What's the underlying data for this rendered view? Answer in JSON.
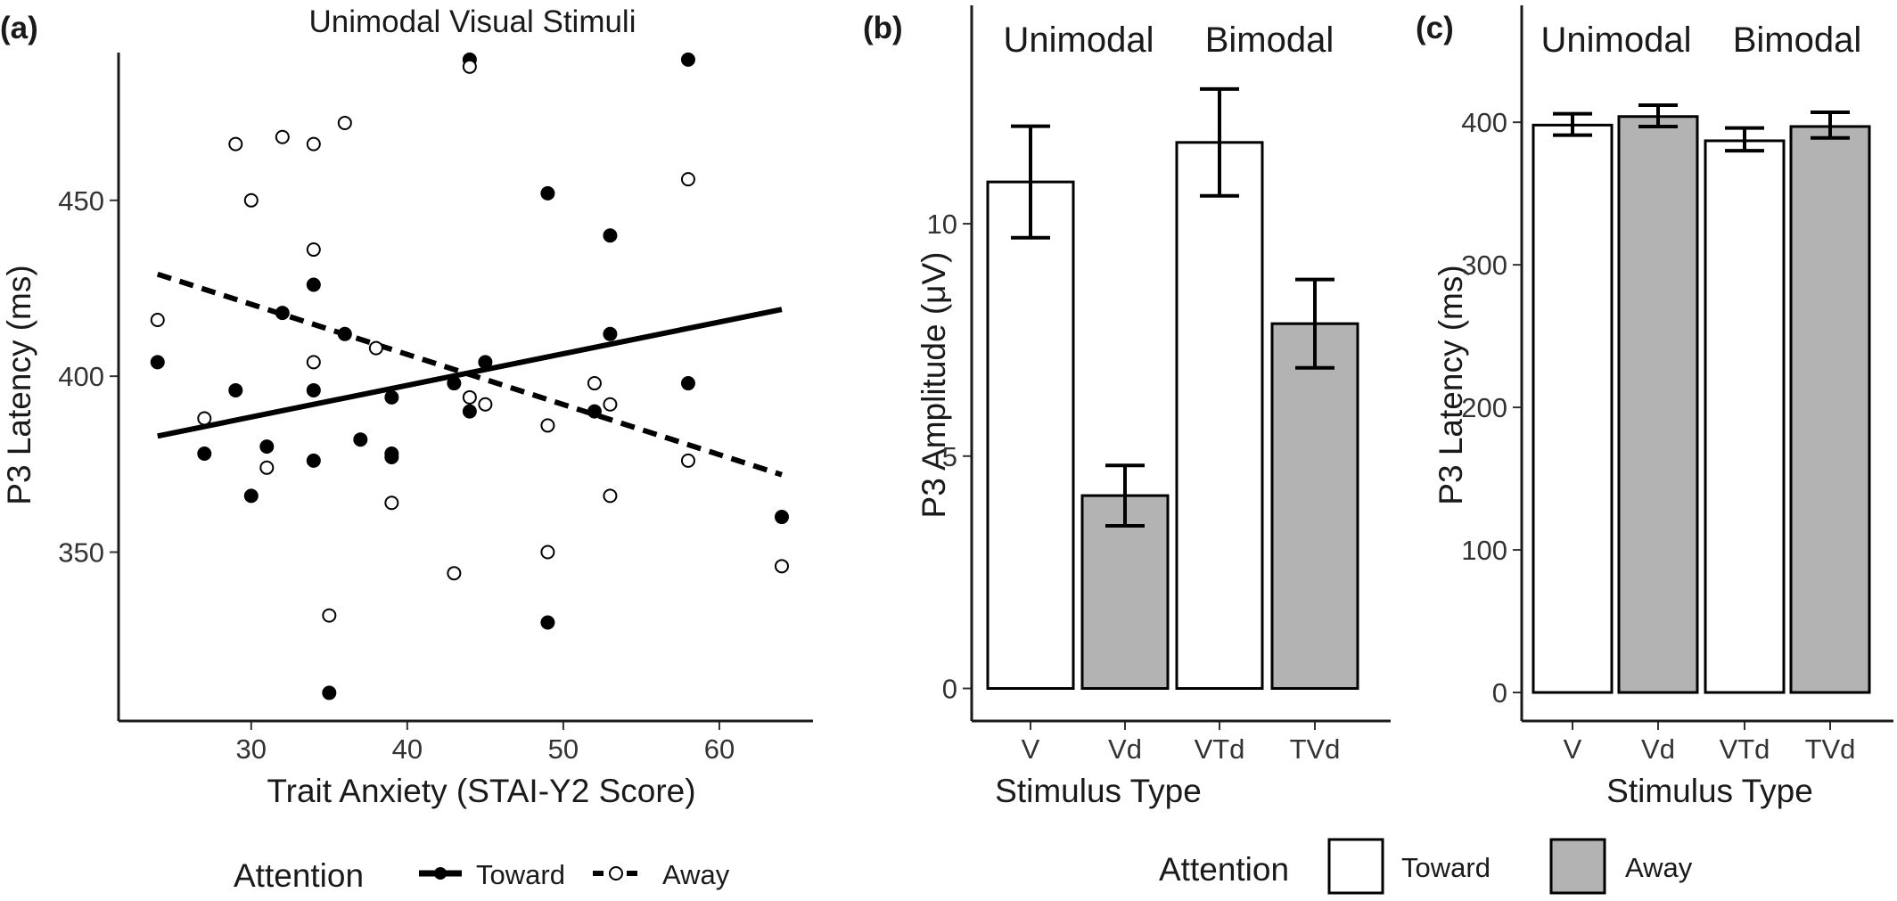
{
  "colors": {
    "toward_fill": "#ffffff",
    "away_fill": "#b3b3b3",
    "line": "#000000",
    "axis": "#1a1a1a"
  },
  "chart_data": [
    {
      "panel_label": "(a)",
      "type": "scatter",
      "title": "Unimodal Visual Stimuli",
      "xlabel": "Trait Anxiety (STAI-Y2 Score)",
      "ylabel": "P3 Latency (ms)",
      "xlim": [
        21.5,
        66
      ],
      "ylim": [
        302,
        492
      ],
      "xticks": [
        30,
        40,
        50,
        60
      ],
      "yticks": [
        350,
        400,
        450
      ],
      "legend_title": "Attention",
      "legend_position": "bottom",
      "series": [
        {
          "name": "Toward",
          "marker": "filled-circle",
          "line_style": "solid",
          "fit": {
            "x": [
              24,
              64
            ],
            "y": [
              383,
              419
            ]
          },
          "points": [
            [
              24,
              404
            ],
            [
              27,
              378
            ],
            [
              29,
              396
            ],
            [
              30,
              366
            ],
            [
              31,
              380
            ],
            [
              32,
              418
            ],
            [
              34,
              426
            ],
            [
              34,
              396
            ],
            [
              34,
              376
            ],
            [
              36,
              412
            ],
            [
              37,
              382
            ],
            [
              39,
              394
            ],
            [
              39,
              378
            ],
            [
              39,
              377
            ],
            [
              35,
              310
            ],
            [
              43,
              398
            ],
            [
              44,
              490
            ],
            [
              44,
              390
            ],
            [
              45,
              404
            ],
            [
              49,
              452
            ],
            [
              49,
              330
            ],
            [
              52,
              390
            ],
            [
              53,
              440
            ],
            [
              53,
              412
            ],
            [
              58,
              490
            ],
            [
              58,
              398
            ],
            [
              64,
              360
            ]
          ]
        },
        {
          "name": "Away",
          "marker": "open-circle",
          "line_style": "dashed",
          "fit": {
            "x": [
              24,
              64
            ],
            "y": [
              429,
              372
            ]
          },
          "points": [
            [
              24,
              416
            ],
            [
              27,
              388
            ],
            [
              29,
              466
            ],
            [
              30,
              450
            ],
            [
              31,
              374
            ],
            [
              32,
              468
            ],
            [
              34,
              466
            ],
            [
              34,
              436
            ],
            [
              34,
              404
            ],
            [
              35,
              332
            ],
            [
              36,
              472
            ],
            [
              38,
              408
            ],
            [
              39,
              364
            ],
            [
              43,
              344
            ],
            [
              44,
              488
            ],
            [
              44,
              394
            ],
            [
              45,
              392
            ],
            [
              49,
              386
            ],
            [
              49,
              350
            ],
            [
              52,
              398
            ],
            [
              53,
              392
            ],
            [
              53,
              366
            ],
            [
              58,
              456
            ],
            [
              58,
              376
            ],
            [
              64,
              346
            ]
          ]
        }
      ]
    },
    {
      "panel_label": "(b)",
      "type": "bar",
      "xlabel": "Stimulus Type",
      "ylabel": "P3 Amplitude (μV)",
      "ylim": [
        -0.7,
        14.7
      ],
      "yticks": [
        0,
        5,
        10
      ],
      "categories": [
        "V",
        "Vd",
        "VTd",
        "TVd"
      ],
      "attention": [
        "Toward",
        "Away",
        "Toward",
        "Away"
      ],
      "values": [
        10.9,
        4.15,
        11.75,
        7.85
      ],
      "error_bars": [
        [
          9.7,
          12.1
        ],
        [
          3.5,
          4.8
        ],
        [
          10.6,
          12.9
        ],
        [
          6.9,
          8.8
        ]
      ],
      "group_labels": [
        "Unimodal",
        "Bimodal"
      ]
    },
    {
      "panel_label": "(c)",
      "type": "bar",
      "xlabel": "Stimulus Type",
      "ylabel": "P3 Latency (ms)",
      "ylim": [
        -20,
        482
      ],
      "yticks": [
        0,
        100,
        200,
        300,
        400
      ],
      "categories": [
        "V",
        "Vd",
        "VTd",
        "TVd"
      ],
      "attention": [
        "Toward",
        "Away",
        "Toward",
        "Away"
      ],
      "values": [
        398,
        404,
        387,
        397
      ],
      "error_bars": [
        [
          391,
          406
        ],
        [
          397,
          412
        ],
        [
          380,
          396
        ],
        [
          389,
          407
        ]
      ],
      "group_labels": [
        "Unimodal",
        "Bimodal"
      ]
    }
  ],
  "legend_bottom": {
    "title": "Attention",
    "items": [
      "Toward",
      "Away"
    ]
  }
}
